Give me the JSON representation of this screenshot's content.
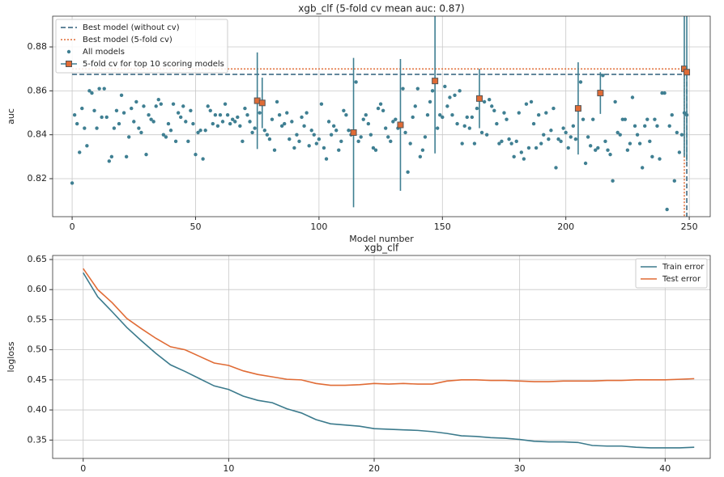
{
  "chart_data": [
    {
      "type": "scatter",
      "title": "xgb_clf (5-fold cv mean auc: 0.87)",
      "xlabel": "Model number",
      "ylabel": "auc",
      "xlim": [
        -7.9,
        258.5
      ],
      "ylim": [
        0.8027,
        0.894
      ],
      "xticks": [
        0,
        50,
        100,
        150,
        200,
        250
      ],
      "yticks": [
        0.82,
        0.84,
        0.86,
        0.88
      ],
      "grid": true,
      "legend": "upper left",
      "series": [
        {
          "name": "Best model (without cv)",
          "kind": "hline",
          "style": "dashed",
          "color": "#2f5f7a",
          "x": [
            0,
            249
          ],
          "values": [
            0.8675,
            0.8675
          ]
        },
        {
          "name": "Best model (5-fold cv)",
          "kind": "hline",
          "style": "dotted",
          "color": "#e06b35",
          "x": [
            0,
            248
          ],
          "values": [
            0.87,
            0.87
          ]
        },
        {
          "name": "All models",
          "kind": "points",
          "color": "#3f7f92",
          "x": [
            0,
            1,
            2,
            3,
            4,
            5,
            6,
            7,
            8,
            9,
            10,
            11,
            12,
            13,
            14,
            15,
            16,
            17,
            18,
            19,
            20,
            21,
            22,
            23,
            24,
            25,
            26,
            27,
            28,
            29,
            30,
            31,
            32,
            33,
            34,
            35,
            36,
            37,
            38,
            39,
            40,
            41,
            42,
            43,
            44,
            45,
            46,
            47,
            48,
            49,
            50,
            51,
            52,
            53,
            54,
            55,
            56,
            57,
            58,
            59,
            60,
            61,
            62,
            63,
            64,
            65,
            66,
            67,
            68,
            69,
            70,
            71,
            72,
            73,
            74,
            75,
            76,
            77,
            78,
            79,
            80,
            81,
            82,
            83,
            84,
            85,
            86,
            87,
            88,
            89,
            90,
            91,
            92,
            93,
            94,
            95,
            96,
            97,
            98,
            99,
            100,
            101,
            102,
            103,
            104,
            105,
            106,
            107,
            108,
            109,
            110,
            111,
            112,
            113,
            114,
            115,
            116,
            117,
            118,
            119,
            120,
            121,
            122,
            123,
            124,
            125,
            126,
            127,
            128,
            129,
            130,
            131,
            132,
            133,
            134,
            135,
            136,
            137,
            138,
            139,
            140,
            141,
            142,
            143,
            144,
            145,
            146,
            147,
            148,
            149,
            150,
            151,
            152,
            153,
            154,
            155,
            156,
            157,
            158,
            159,
            160,
            161,
            162,
            163,
            164,
            165,
            166,
            167,
            168,
            169,
            170,
            171,
            172,
            173,
            174,
            175,
            176,
            177,
            178,
            179,
            180,
            181,
            182,
            183,
            184,
            185,
            186,
            187,
            188,
            189,
            190,
            191,
            192,
            193,
            194,
            195,
            196,
            197,
            198,
            199,
            200,
            201,
            202,
            203,
            204,
            205,
            206,
            207,
            208,
            209,
            210,
            211,
            212,
            213,
            214,
            215,
            216,
            217,
            218,
            219,
            220,
            221,
            222,
            223,
            224,
            225,
            226,
            227,
            228,
            229,
            230,
            231,
            232,
            233,
            234,
            235,
            236,
            237,
            238,
            239,
            240,
            241,
            242,
            243,
            244,
            245,
            246,
            247,
            248,
            249
          ],
          "values": [
            0.818,
            0.849,
            0.845,
            0.832,
            0.852,
            0.843,
            0.835,
            0.86,
            0.859,
            0.851,
            0.843,
            0.861,
            0.848,
            0.861,
            0.848,
            0.828,
            0.83,
            0.843,
            0.851,
            0.845,
            0.858,
            0.85,
            0.83,
            0.839,
            0.852,
            0.846,
            0.855,
            0.843,
            0.841,
            0.853,
            0.831,
            0.849,
            0.847,
            0.846,
            0.853,
            0.856,
            0.854,
            0.84,
            0.839,
            0.845,
            0.842,
            0.854,
            0.837,
            0.85,
            0.848,
            0.853,
            0.846,
            0.837,
            0.851,
            0.845,
            0.831,
            0.841,
            0.842,
            0.829,
            0.842,
            0.853,
            0.851,
            0.845,
            0.849,
            0.844,
            0.849,
            0.846,
            0.854,
            0.849,
            0.845,
            0.847,
            0.846,
            0.848,
            0.844,
            0.837,
            0.852,
            0.849,
            0.846,
            0.841,
            0.843,
            0.855,
            0.85,
            0.854,
            0.842,
            0.84,
            0.838,
            0.847,
            0.833,
            0.855,
            0.849,
            0.844,
            0.845,
            0.85,
            0.838,
            0.846,
            0.834,
            0.84,
            0.837,
            0.848,
            0.844,
            0.85,
            0.835,
            0.842,
            0.84,
            0.836,
            0.838,
            0.854,
            0.834,
            0.829,
            0.846,
            0.84,
            0.844,
            0.842,
            0.833,
            0.837,
            0.851,
            0.849,
            0.842,
            0.84,
            0.841,
            0.864,
            0.837,
            0.839,
            0.847,
            0.849,
            0.845,
            0.84,
            0.834,
            0.833,
            0.852,
            0.854,
            0.851,
            0.843,
            0.839,
            0.837,
            0.846,
            0.847,
            0.843,
            0.845,
            0.861,
            0.841,
            0.823,
            0.836,
            0.848,
            0.853,
            0.861,
            0.83,
            0.833,
            0.839,
            0.849,
            0.855,
            0.86,
            0.865,
            0.843,
            0.849,
            0.848,
            0.862,
            0.853,
            0.857,
            0.849,
            0.858,
            0.845,
            0.86,
            0.836,
            0.844,
            0.848,
            0.843,
            0.848,
            0.836,
            0.852,
            0.856,
            0.841,
            0.855,
            0.84,
            0.856,
            0.853,
            0.851,
            0.845,
            0.836,
            0.837,
            0.85,
            0.847,
            0.838,
            0.836,
            0.83,
            0.837,
            0.85,
            0.832,
            0.829,
            0.854,
            0.834,
            0.855,
            0.845,
            0.834,
            0.849,
            0.836,
            0.84,
            0.85,
            0.838,
            0.842,
            0.852,
            0.825,
            0.838,
            0.837,
            0.843,
            0.841,
            0.834,
            0.839,
            0.844,
            0.838,
            0.852,
            0.864,
            0.847,
            0.827,
            0.839,
            0.835,
            0.847,
            0.833,
            0.834,
            0.859,
            0.867,
            0.837,
            0.833,
            0.831,
            0.819,
            0.855,
            0.841,
            0.84,
            0.847,
            0.847,
            0.833,
            0.836,
            0.857,
            0.844,
            0.84,
            0.836,
            0.825,
            0.844,
            0.847,
            0.837,
            0.83,
            0.847,
            0.844,
            0.829,
            0.859,
            0.859,
            0.806,
            0.844,
            0.849,
            0.819,
            0.841,
            0.832,
            0.84,
            0.85,
            0.849
          ]
        },
        {
          "name": "5-fold cv for top 10 scoring models",
          "kind": "errorbar",
          "color": "#3f7f92",
          "marker_color": "#e06b35",
          "x": [
            75,
            77,
            114,
            133,
            147,
            165,
            205,
            214,
            248,
            249
          ],
          "values": [
            0.8555,
            0.8545,
            0.841,
            0.8445,
            0.8645,
            0.8565,
            0.852,
            0.859,
            0.87,
            0.8685
          ],
          "errors": [
            0.022,
            0.0115,
            0.034,
            0.03,
            0.033,
            0.0135,
            0.021,
            0.0095,
            0.04,
            0.0405
          ]
        }
      ]
    },
    {
      "type": "line",
      "title": "xgb_clf",
      "ylabel": "logloss",
      "xlim": [
        -2.1,
        43.1
      ],
      "ylim": [
        0.3195,
        0.6567
      ],
      "xticks": [
        0,
        10,
        20,
        30,
        40
      ],
      "yticks": [
        0.35,
        {
          "value": 0.4,
          "label": "0.40"
        },
        0.45,
        {
          "value": 0.5,
          "label": "0.50"
        },
        0.55,
        {
          "value": 0.6,
          "label": "0.60"
        },
        0.65
      ],
      "grid": true,
      "legend": "upper right",
      "series": [
        {
          "name": "Train error",
          "kind": "line",
          "color": "#3b7a8c",
          "x": [
            0,
            1,
            2,
            3,
            4,
            5,
            6,
            7,
            8,
            9,
            10,
            11,
            12,
            13,
            14,
            15,
            16,
            17,
            18,
            19,
            20,
            21,
            22,
            23,
            24,
            25,
            26,
            27,
            28,
            29,
            30,
            31,
            32,
            33,
            34,
            35,
            36,
            37,
            38,
            39,
            40,
            41,
            42
          ],
          "values": [
            0.628,
            0.588,
            0.563,
            0.537,
            0.515,
            0.494,
            0.475,
            0.464,
            0.452,
            0.44,
            0.434,
            0.423,
            0.416,
            0.412,
            0.402,
            0.395,
            0.384,
            0.377,
            0.375,
            0.373,
            0.369,
            0.368,
            0.367,
            0.366,
            0.364,
            0.361,
            0.357,
            0.356,
            0.354,
            0.353,
            0.351,
            0.348,
            0.347,
            0.347,
            0.346,
            0.341,
            0.34,
            0.34,
            0.338,
            0.337,
            0.337,
            0.337,
            0.338
          ]
        },
        {
          "name": "Test error",
          "kind": "line",
          "color": "#e06b35",
          "x": [
            0,
            1,
            2,
            3,
            4,
            5,
            6,
            7,
            8,
            9,
            10,
            11,
            12,
            13,
            14,
            15,
            16,
            17,
            18,
            19,
            20,
            21,
            22,
            23,
            24,
            25,
            26,
            27,
            28,
            29,
            30,
            31,
            32,
            33,
            34,
            35,
            36,
            37,
            38,
            39,
            40,
            41,
            42
          ],
          "values": [
            0.635,
            0.6,
            0.578,
            0.552,
            0.535,
            0.519,
            0.505,
            0.5,
            0.489,
            0.478,
            0.474,
            0.465,
            0.459,
            0.455,
            0.451,
            0.45,
            0.444,
            0.441,
            0.441,
            0.442,
            0.444,
            0.443,
            0.444,
            0.443,
            0.443,
            0.448,
            0.45,
            0.45,
            0.449,
            0.449,
            0.448,
            0.447,
            0.447,
            0.448,
            0.448,
            0.448,
            0.449,
            0.449,
            0.45,
            0.45,
            0.45,
            0.451,
            0.452
          ]
        }
      ]
    }
  ]
}
